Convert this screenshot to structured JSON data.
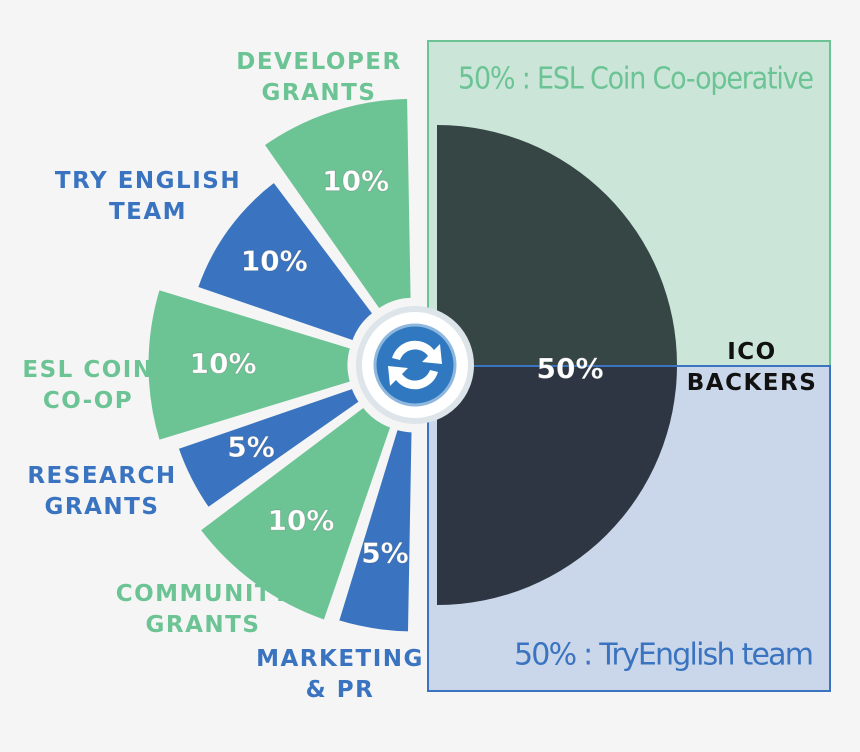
{
  "chart_data": {
    "type": "pie",
    "categories": [
      "ICO\nBACKERS",
      "MARKETING\n& PR",
      "COMMUNITY\nGRANTS",
      "RESEARCH\nGRANTS",
      "ESL COIN\nCO-OP",
      "TRY ENGLISH\nTEAM",
      "DEVELOPER\nGRANTS"
    ],
    "values": [
      50,
      5,
      10,
      5,
      10,
      10,
      10
    ],
    "value_labels": [
      "50%",
      "5%",
      "10%",
      "5%",
      "10%",
      "10%",
      "10%"
    ],
    "colors": [
      "#2c3138",
      "#3a74c0",
      "#6cc495",
      "#3a74c0",
      "#6cc495",
      "#3a74c0",
      "#6cc495"
    ],
    "label_colors": [
      "#111111",
      "#3a74c0",
      "#6cc495",
      "#3a74c0",
      "#6cc495",
      "#3a74c0",
      "#6cc495"
    ],
    "annotations": [
      "50% : ESL Coin Co-operative",
      "50% : TryEnglish team"
    ]
  }
}
